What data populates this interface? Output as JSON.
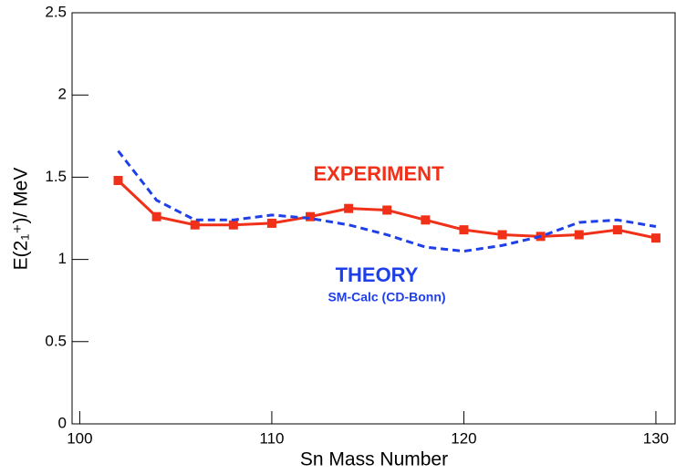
{
  "chart_data": {
    "type": "line",
    "xlabel": "Sn Mass Number",
    "ylabel": "E(2₁⁺)/ MeV",
    "x": [
      102,
      104,
      106,
      108,
      110,
      112,
      114,
      116,
      118,
      120,
      122,
      124,
      126,
      128,
      130
    ],
    "series": [
      {
        "name": "EXPERIMENT",
        "color": "#f03018",
        "style": "solid",
        "marker": "square",
        "values": [
          1.48,
          1.26,
          1.21,
          1.21,
          1.22,
          1.26,
          1.31,
          1.3,
          1.24,
          1.18,
          1.15,
          1.14,
          1.15,
          1.18,
          1.13
        ]
      },
      {
        "name": "THEORY",
        "color": "#1f40e8",
        "style": "dashed",
        "marker": "none",
        "values": [
          1.66,
          1.36,
          1.24,
          1.24,
          1.27,
          1.25,
          1.21,
          1.15,
          1.075,
          1.05,
          1.085,
          1.14,
          1.225,
          1.24,
          1.2
        ]
      }
    ],
    "annotation": "SM-Calc (CD-Bonn)",
    "xlim": [
      99.6,
      131
    ],
    "ylim": [
      0,
      2.5
    ],
    "xticks": [
      100,
      110,
      120,
      130
    ],
    "yticks": [
      0,
      0.5,
      1,
      1.5,
      2,
      2.5
    ],
    "grid": false
  }
}
